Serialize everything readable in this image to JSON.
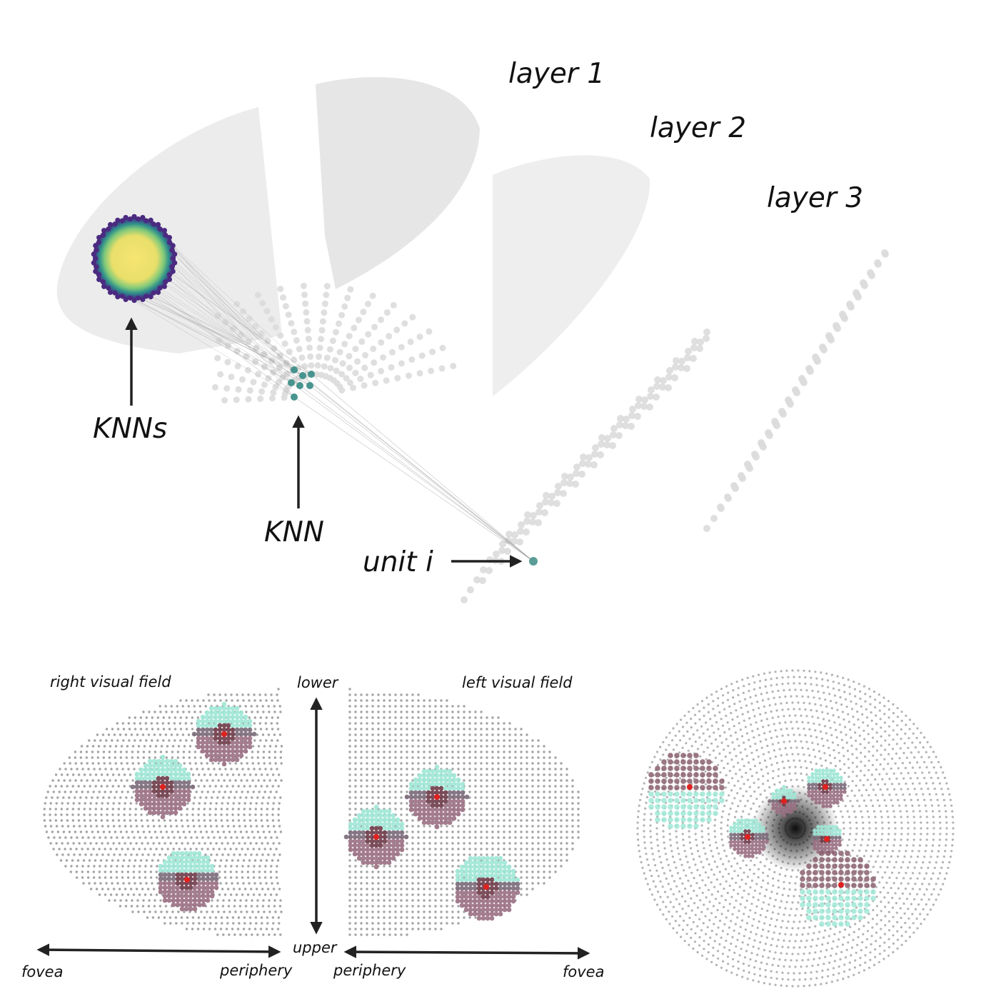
{
  "top_panel": {
    "layer_labels": [
      "layer 1",
      "layer 2",
      "layer 3"
    ],
    "annotations": {
      "knns": "KNNs",
      "knn": "KNN",
      "unit": "unit i"
    }
  },
  "bottom_panel": {
    "right_field": {
      "title": "right visual field",
      "axis_left": "fovea",
      "axis_right": "periphery"
    },
    "vertical_axis": {
      "top": "lower",
      "bottom": "upper"
    },
    "left_field": {
      "title": "left visual field",
      "axis_left": "periphery",
      "axis_right": "fovea"
    }
  },
  "colors": {
    "grid_dot": "#dcdcdc",
    "sheet": "#ececec",
    "field_dot": "#9a9a9a",
    "teal": "#3f8f8a",
    "yellow": "#f2e36b",
    "purple": "#4b2a80",
    "rf_red": "#e0221f",
    "rf_cyan": "#9fe7d6",
    "rf_mauve": "#9a6f82"
  }
}
